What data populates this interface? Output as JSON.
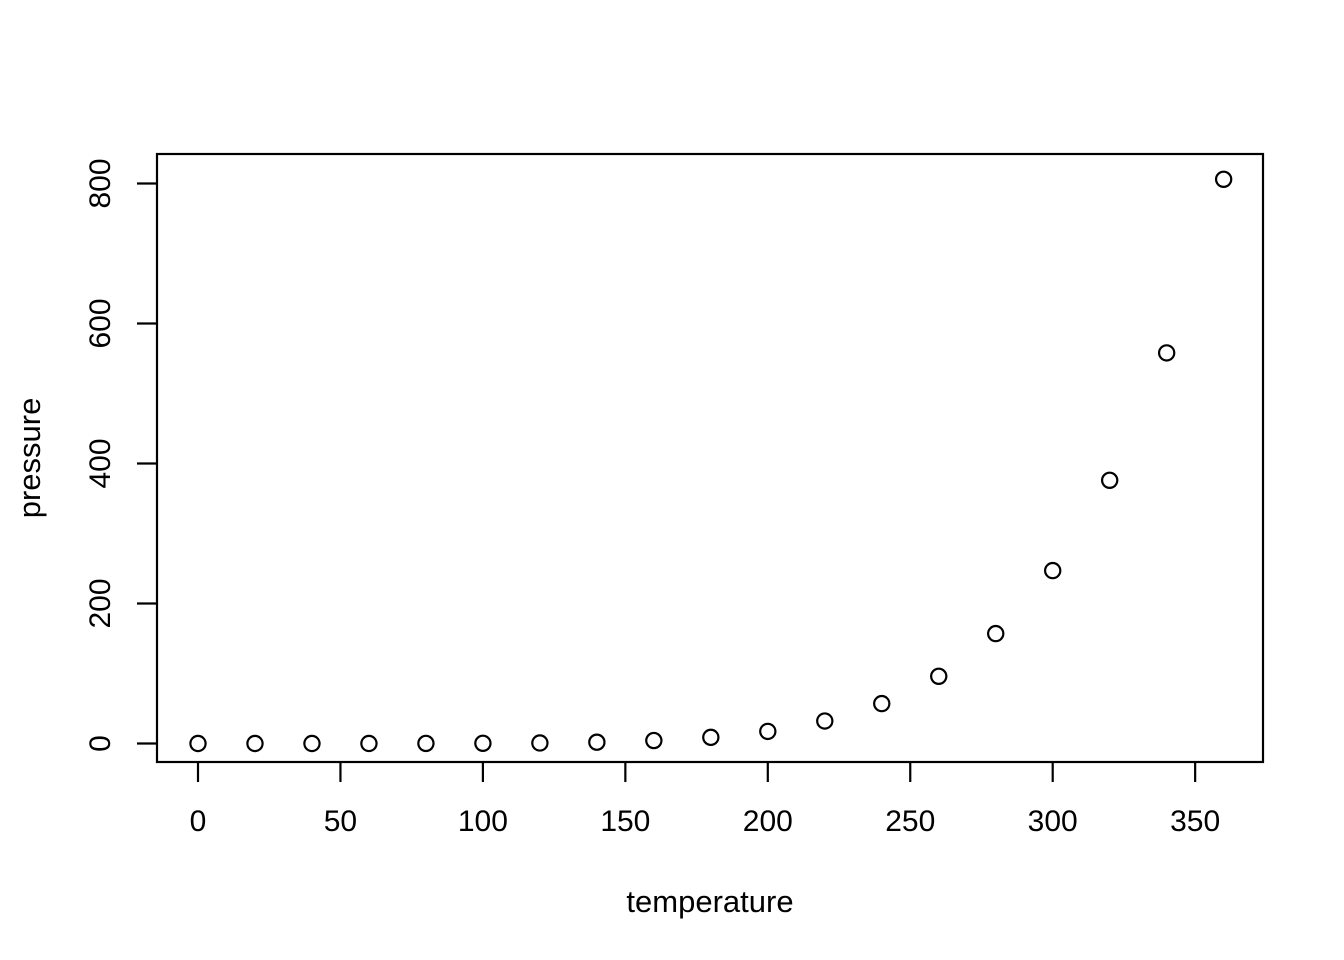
{
  "figure": {
    "background_color": "#ffffff",
    "foreground_color": "#000000"
  },
  "chart_data": {
    "type": "scatter",
    "title": "",
    "xlabel": "temperature",
    "ylabel": "pressure",
    "x": [
      0,
      20,
      40,
      60,
      80,
      100,
      120,
      140,
      160,
      180,
      200,
      220,
      240,
      260,
      280,
      300,
      320,
      340,
      360
    ],
    "y": [
      0.0002,
      0.0012,
      0.006,
      0.03,
      0.09,
      0.27,
      0.75,
      1.85,
      4.2,
      8.8,
      17.3,
      32.1,
      57,
      96,
      157,
      247,
      376,
      558,
      806
    ],
    "x_tick_values": [
      0,
      50,
      100,
      150,
      200,
      250,
      300,
      350
    ],
    "x_tick_labels": [
      "0",
      "50",
      "100",
      "150",
      "200",
      "250",
      "300",
      "350"
    ],
    "y_tick_values": [
      0,
      200,
      400,
      600,
      800
    ],
    "y_tick_labels": [
      "0",
      "200",
      "400",
      "600",
      "800"
    ],
    "xlim": [
      -14.4,
      374.4
    ],
    "ylim": [
      -32.2,
      838.2
    ],
    "grid": false,
    "legend_position": "none",
    "marker": {
      "shape": "open-circle",
      "color": "#000000"
    }
  }
}
